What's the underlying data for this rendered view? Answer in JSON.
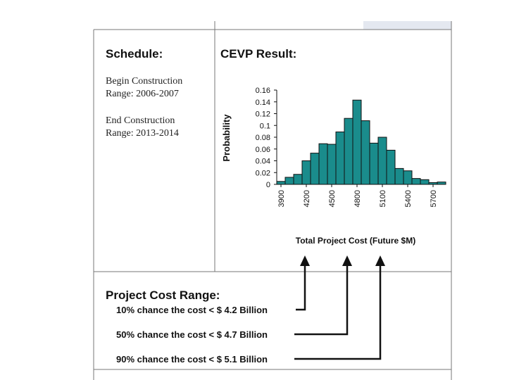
{
  "schedule": {
    "title": "Schedule:",
    "lines": [
      "Begin Construction",
      "Range: 2006-2007",
      "End Construction",
      "Range: 2013-2014"
    ]
  },
  "cevp": {
    "title": "CEVP Result:"
  },
  "chart_data": {
    "type": "histogram",
    "ylabel": "Probability",
    "xlabel": "Total Project Cost (Future $M)",
    "bins": [
      3850,
      3950,
      4050,
      4150,
      4250,
      4350,
      4450,
      4550,
      4650,
      4750,
      4850,
      4950,
      5050,
      5150,
      5250,
      5350,
      5450,
      5550,
      5650,
      5750,
      5850
    ],
    "values": [
      0.005,
      0.012,
      0.017,
      0.04,
      0.053,
      0.069,
      0.068,
      0.089,
      0.112,
      0.143,
      0.108,
      0.07,
      0.08,
      0.058,
      0.027,
      0.023,
      0.01,
      0.008,
      0.003,
      0.004
    ],
    "color": "#1a8c8c",
    "xlim": [
      3850,
      5850
    ],
    "xticks": [
      3900,
      4200,
      4500,
      4800,
      5100,
      5400,
      5700
    ],
    "ylim": [
      0,
      0.16
    ],
    "yticks": [
      0,
      0.02,
      0.04,
      0.06,
      0.08,
      0.1,
      0.12,
      0.14,
      0.16
    ]
  },
  "cost_range": {
    "title": "Project Cost Range:",
    "lines": [
      "10% chance the cost < $ 4.2 Billion",
      "50% chance the cost < $ 4.7 Billion",
      "90% chance the cost < $ 5.1 Billion"
    ]
  }
}
